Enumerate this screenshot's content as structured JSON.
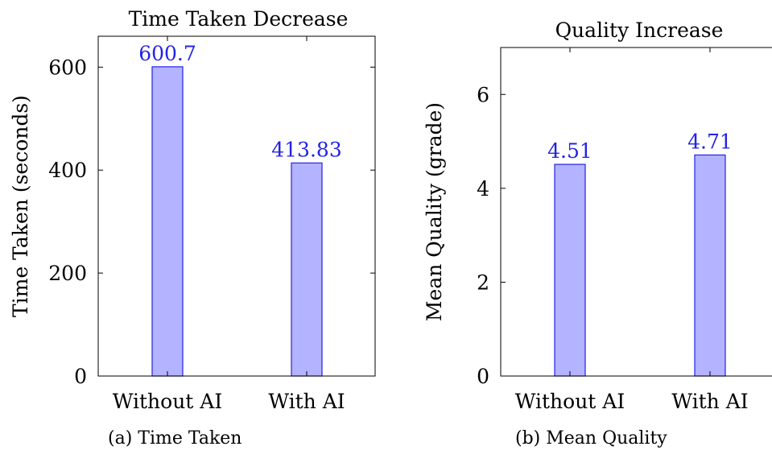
{
  "colors": {
    "bar_fill": "#b3b3ff",
    "bar_stroke": "#2323e6",
    "data_label": "#2323e6"
  },
  "chart_data": [
    {
      "type": "bar",
      "title": "Time Taken Decrease",
      "ylabel": "Time Taken (seconds)",
      "xlabel": "",
      "categories": [
        "Without AI",
        "With AI"
      ],
      "values": [
        600.7,
        413.83
      ],
      "value_labels": [
        "600.7",
        "413.83"
      ],
      "ylim": [
        0,
        660
      ],
      "yticks": [
        0,
        200,
        400,
        600
      ],
      "ytick_labels": [
        "0",
        "200",
        "400",
        "600"
      ],
      "grid": false,
      "caption": "(a) Time Taken"
    },
    {
      "type": "bar",
      "title": "Quality Increase",
      "ylabel": "Mean Quality (grade)",
      "xlabel": "",
      "categories": [
        "Without AI",
        "With AI"
      ],
      "values": [
        4.51,
        4.71
      ],
      "value_labels": [
        "4.51",
        "4.71"
      ],
      "ylim": [
        0,
        7
      ],
      "yticks": [
        0,
        2,
        4,
        6
      ],
      "ytick_labels": [
        "0",
        "2",
        "4",
        "6"
      ],
      "grid": false,
      "caption": "(b) Mean Quality"
    }
  ]
}
